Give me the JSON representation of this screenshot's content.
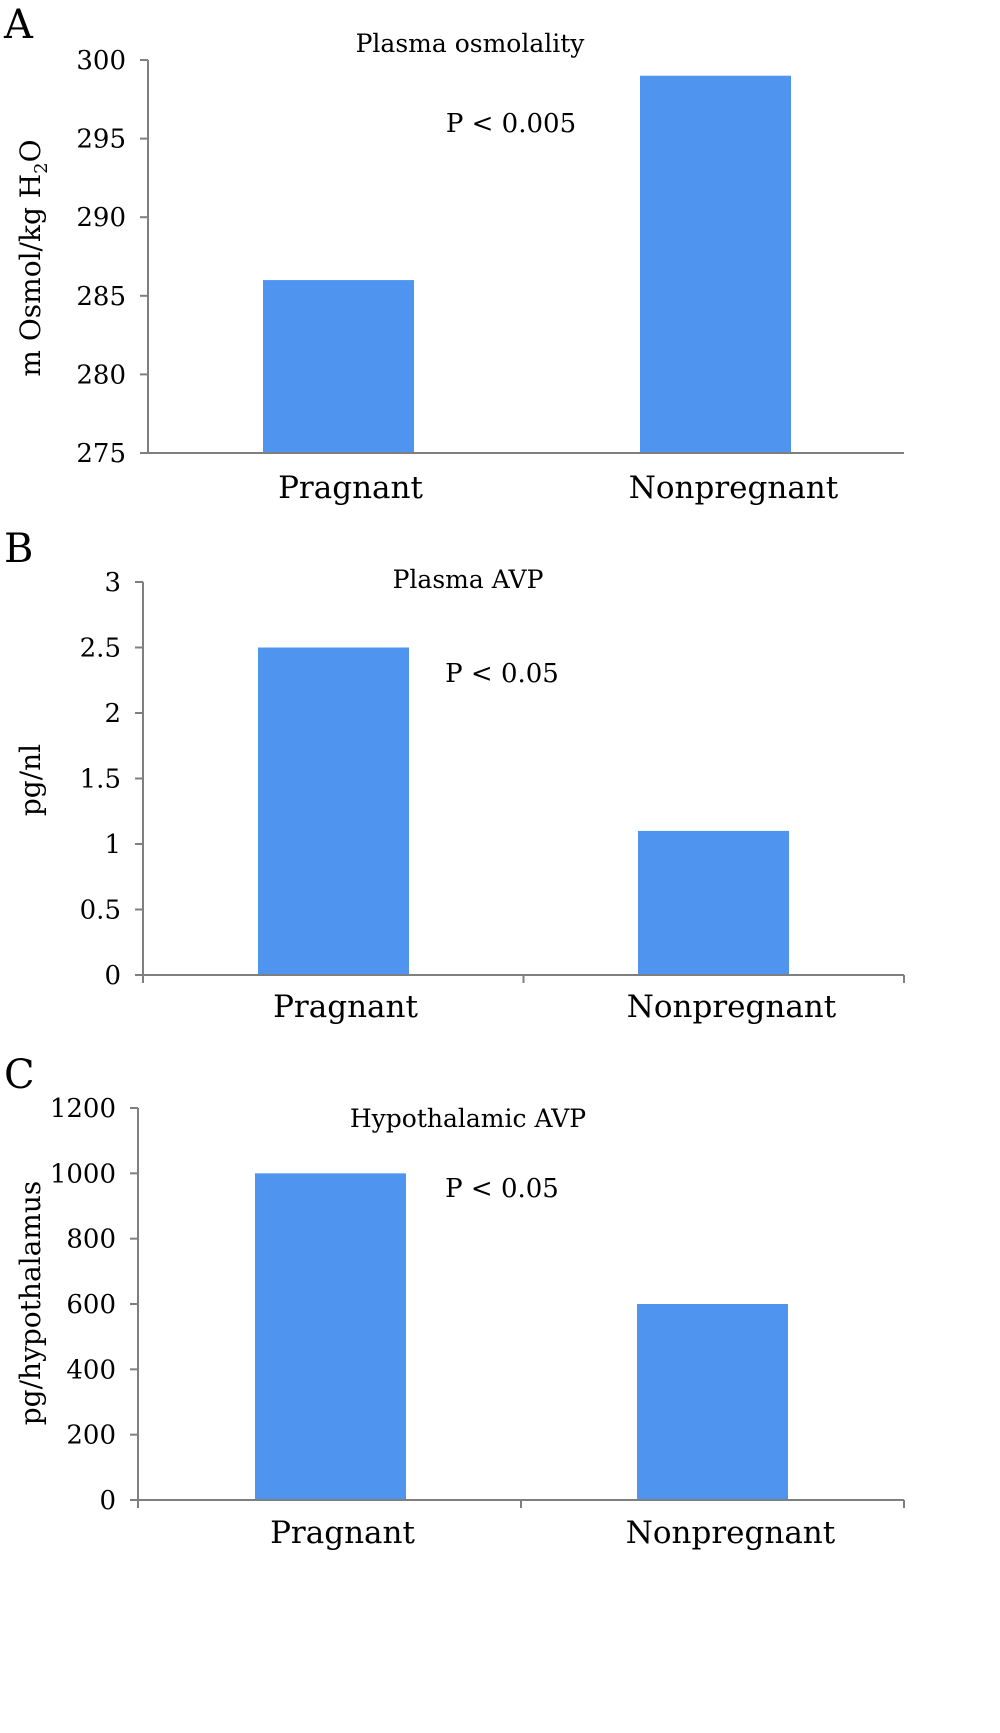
{
  "chart_data": [
    {
      "type": "bar",
      "panel": "A",
      "title": "Plasma osmolality",
      "ylabel": "m Osmol/kg H",
      "ylabel_sub": "2",
      "ylabel_end": "O",
      "categories": [
        "Pragnant",
        "Nonpregnant"
      ],
      "values": [
        286,
        299
      ],
      "ylim": [
        275,
        300
      ],
      "yticks": [
        "275",
        "280",
        "285",
        "290",
        "295",
        "300"
      ],
      "annotation": "P < 0.005",
      "bar_color": "#4f94ef",
      "grid": false,
      "legend": "none"
    },
    {
      "type": "bar",
      "panel": "B",
      "title": "Plasma AVP",
      "ylabel": "pg/nl",
      "categories": [
        "Pragnant",
        "Nonpregnant"
      ],
      "values": [
        2.5,
        1.1
      ],
      "ylim": [
        0,
        3
      ],
      "yticks": [
        "0",
        "0.5",
        "1",
        "1.5",
        "2",
        "2.5",
        "3"
      ],
      "annotation": "P < 0.05",
      "bar_color": "#4f94ef",
      "grid": false,
      "legend": "none"
    },
    {
      "type": "bar",
      "panel": "C",
      "title": "Hypothalamic AVP",
      "ylabel": "pg/hypothalamus",
      "categories": [
        "Pragnant",
        "Nonpregnant"
      ],
      "values": [
        1000,
        600
      ],
      "ylim": [
        0,
        1200
      ],
      "yticks": [
        "0",
        "200",
        "400",
        "600",
        "800",
        "1000",
        "1200"
      ],
      "annotation": "P < 0.05",
      "bar_color": "#4f94ef",
      "grid": false,
      "legend": "none"
    }
  ]
}
